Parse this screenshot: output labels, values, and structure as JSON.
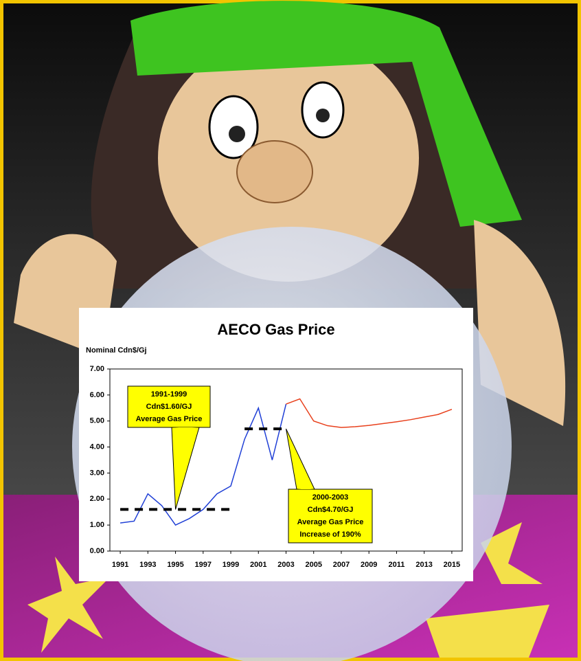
{
  "chart_data": {
    "type": "line",
    "title": "AECO Gas Price",
    "y_label": "Nominal Cdn$/Gj",
    "x": [
      1991,
      1992,
      1993,
      1994,
      1995,
      1996,
      1997,
      1998,
      1999,
      2000,
      2001,
      2002,
      2003,
      2004,
      2005,
      2006,
      2007,
      2008,
      2009,
      2010,
      2011,
      2012,
      2013,
      2014,
      2015
    ],
    "series": [
      {
        "color": "#1f3fd6",
        "values": [
          1.08,
          1.15,
          2.2,
          1.75,
          1.0,
          1.25,
          1.6,
          2.2,
          2.5,
          4.3,
          5.5,
          3.5,
          5.65,
          null,
          null,
          null,
          null,
          null,
          null,
          null,
          null,
          null,
          null,
          null,
          null
        ]
      },
      {
        "color": "#e8401c",
        "values": [
          null,
          null,
          null,
          null,
          null,
          null,
          null,
          null,
          null,
          null,
          null,
          null,
          5.65,
          5.85,
          5.0,
          4.82,
          4.75,
          4.78,
          4.83,
          4.9,
          4.97,
          5.05,
          5.15,
          5.25,
          5.45
        ]
      }
    ],
    "reference_lines": [
      {
        "value": 1.6,
        "x": [
          1991,
          1999
        ]
      },
      {
        "value": 4.7,
        "x": [
          2000,
          2003
        ]
      }
    ],
    "annotations": [
      {
        "lines": [
          "1991-1999",
          "Cdn$1.60/GJ",
          "Average Gas Price"
        ],
        "x": 1995,
        "y": 1.6
      },
      {
        "lines": [
          "2000-2003",
          "Cdn$4.70/GJ",
          "Average Gas Price",
          "Increase of 190%"
        ],
        "x": 2003,
        "y": 4.7
      }
    ],
    "xlim": [
      1990.25,
      2015.75
    ],
    "xticks": [
      1991,
      1993,
      1995,
      1997,
      1999,
      2001,
      2003,
      2005,
      2007,
      2009,
      2011,
      2013,
      2015
    ],
    "ylim": [
      0,
      7
    ],
    "yticks": [
      {
        "value": 0,
        "label": "0.00"
      },
      {
        "value": 1,
        "label": "1.00"
      },
      {
        "value": 2,
        "label": "2.00"
      },
      {
        "value": 3,
        "label": "3.00"
      },
      {
        "value": 4,
        "label": "4.00"
      },
      {
        "value": 5,
        "label": "5.00"
      },
      {
        "value": 6,
        "label": "6.00"
      },
      {
        "value": 7,
        "label": "7.00"
      }
    ]
  }
}
